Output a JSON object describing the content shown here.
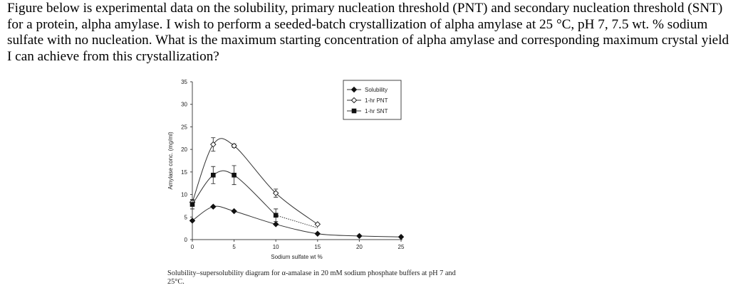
{
  "question": "Figure below is experimental data on the solubility, primary nucleation threshold (PNT) and secondary nucleation threshold (SNT) for a protein, alpha amylase. I wish to perform a seeded-batch crystallization of alpha amylase at 25 °C, pH 7, 7.5 wt. % sodium sulfate with no nucleation. What is the maximum starting concentration of alpha amylase and corresponding maximum crystal yield I can achieve from this crystallization?",
  "caption": "Solubility–supersolubility diagram for α-amalase in 20 mM sodium phosphate buffers at pH 7 and 25°C.",
  "chart_data": {
    "type": "line",
    "xlabel": "Sodium sulfate wt %",
    "ylabel": "Amylase conc. (mg/ml)",
    "xlim": [
      0,
      25
    ],
    "ylim": [
      0,
      35
    ],
    "xticks": [
      "0",
      "5",
      "10",
      "15",
      "20",
      "25"
    ],
    "yticks": [
      "0",
      "5",
      "10",
      "15",
      "20",
      "25",
      "30",
      "35"
    ],
    "grid": false,
    "legend_placement": "top-right",
    "series": [
      {
        "name": "Solubility",
        "marker": "filled-diamond",
        "x": [
          0,
          2.5,
          5,
          10,
          15,
          20,
          25
        ],
        "y": [
          4.2,
          7.3,
          6.3,
          3.4,
          1.3,
          0.8,
          0.6
        ],
        "err": [
          0,
          0,
          0,
          0,
          0,
          0,
          0
        ]
      },
      {
        "name": "1-hr PNT",
        "marker": "open-diamond",
        "x": [
          0,
          2.5,
          5,
          10,
          15
        ],
        "y": [
          8.3,
          21.1,
          20.8,
          10.3,
          3.4
        ],
        "err": [
          0.6,
          1.5,
          0.4,
          0.9,
          0
        ]
      },
      {
        "name": "1-hr SNT",
        "marker": "filled-square",
        "x": [
          0,
          2.5,
          5,
          10
        ],
        "y": [
          7.8,
          14.3,
          14.3,
          5.4
        ],
        "err": [
          1.0,
          1.9,
          2.1,
          1.4
        ],
        "dotted_extension": {
          "x": [
            10,
            15
          ],
          "y": [
            5.4,
            2.6
          ]
        }
      }
    ]
  }
}
